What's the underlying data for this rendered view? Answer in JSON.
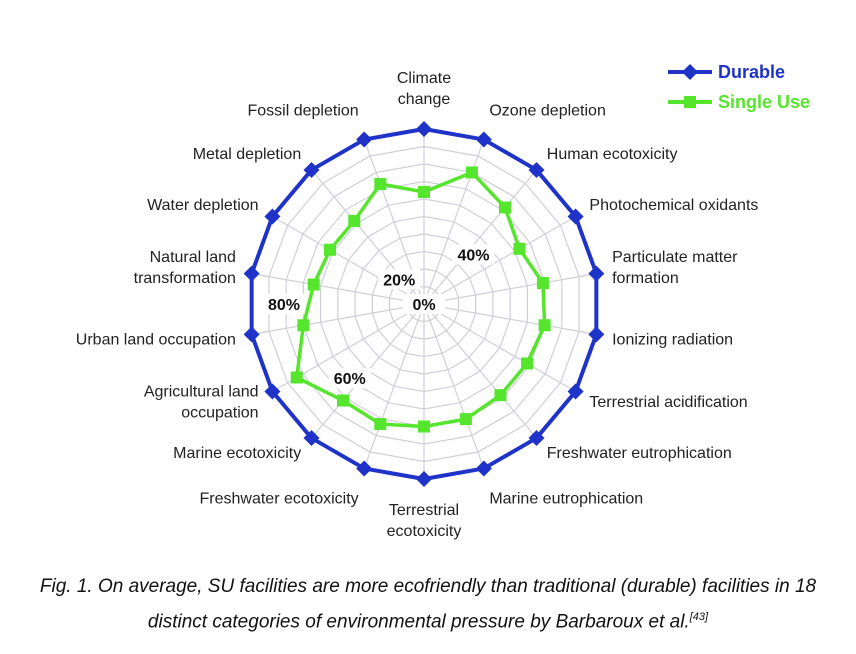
{
  "chart_data": {
    "type": "radar",
    "categories": [
      "Climate change",
      "Ozone depletion",
      "Human ecotoxicity",
      "Photochemical oxidants",
      "Particulate matter formation",
      "Ionizing radiation",
      "Terrestrial acidification",
      "Freshwater eutrophication",
      "Marine eutrophication",
      "Terrestrial ecotoxicity",
      "Freshwater ecotoxicity",
      "Marine ecotoxicity",
      "Agricultural land occupation",
      "Urban land occupation",
      "Natural land transformation",
      "Water depletion",
      "Metal depletion",
      "Fossil depletion"
    ],
    "category_lines": [
      [
        "Climate",
        "change"
      ],
      [
        "Ozone depletion"
      ],
      [
        "Human ecotoxicity"
      ],
      [
        "Photochemical oxidants"
      ],
      [
        "Particulate matter",
        "formation"
      ],
      [
        "Ionizing radiation"
      ],
      [
        "Terrestrial acidification"
      ],
      [
        "Freshwater eutrophication"
      ],
      [
        "Marine eutrophication"
      ],
      [
        "Terrestrial",
        "ecotoxicity"
      ],
      [
        "Freshwater ecotoxicity"
      ],
      [
        "Marine ecotoxicity"
      ],
      [
        "Agricultural land",
        "occupation"
      ],
      [
        "Urban land occupation"
      ],
      [
        "Natural land",
        "transformation"
      ],
      [
        "Water depletion"
      ],
      [
        "Metal depletion"
      ],
      [
        "Fossil depletion"
      ]
    ],
    "series": [
      {
        "name": "Durable",
        "color": "#1f33c8",
        "marker": "diamond",
        "values": [
          100,
          100,
          100,
          100,
          100,
          100,
          100,
          100,
          100,
          100,
          100,
          100,
          100,
          100,
          100,
          100,
          100,
          100
        ]
      },
      {
        "name": "Single Use",
        "color": "#55e52c",
        "marker": "square",
        "values": [
          64,
          80,
          72,
          63,
          69,
          70,
          68,
          68,
          70,
          70,
          73,
          72,
          84,
          70,
          64,
          62,
          62,
          73
        ]
      }
    ],
    "rlim": [
      0,
      100
    ],
    "rticks": [
      {
        "value": 0,
        "label": "0%"
      },
      {
        "value": 20,
        "label": "20%"
      },
      {
        "value": 40,
        "label": "40%"
      },
      {
        "value": 60,
        "label": "60%"
      },
      {
        "value": 80,
        "label": "80%"
      }
    ],
    "grid": true,
    "legend": "top-right"
  },
  "caption": {
    "text": "Fig. 1. On average, SU facilities are more ecofriendly than traditional (durable) facilities in 18 distinct categories of environmental pressure by Barbaroux et al.",
    "ref": "[43]"
  }
}
